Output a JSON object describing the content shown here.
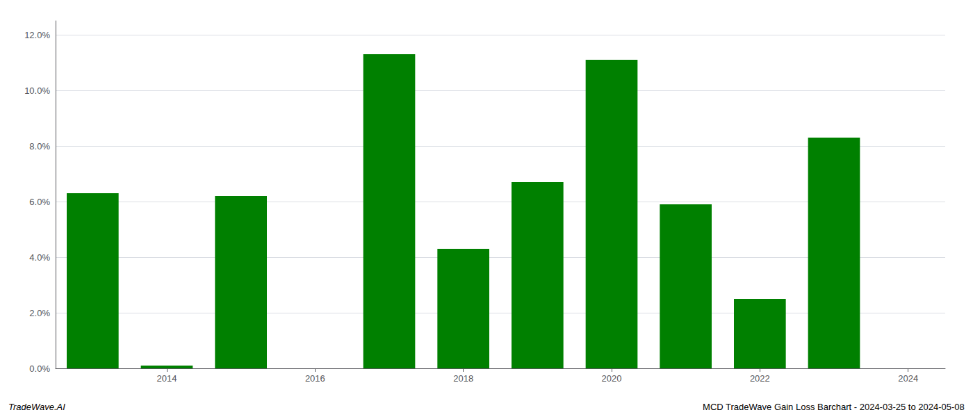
{
  "chart_data": {
    "type": "bar",
    "x": [
      2013,
      2014,
      2015,
      2017,
      2018,
      2019,
      2020,
      2021,
      2022,
      2023
    ],
    "values": [
      0.063,
      0.001,
      0.062,
      0.113,
      0.043,
      0.067,
      0.111,
      0.059,
      0.025,
      0.083
    ],
    "color": "#008000",
    "xlim": [
      2012.5,
      2024.5
    ],
    "xticks": [
      2014,
      2016,
      2018,
      2020,
      2022,
      2024
    ],
    "ylim": [
      0,
      0.125
    ],
    "yticks": [
      {
        "value": 0.0,
        "label": "0.0%"
      },
      {
        "value": 0.02,
        "label": "2.0%"
      },
      {
        "value": 0.04,
        "label": "4.0%"
      },
      {
        "value": 0.06,
        "label": "6.0%"
      },
      {
        "value": 0.08,
        "label": "8.0%"
      },
      {
        "value": 0.1,
        "label": "10.0%"
      },
      {
        "value": 0.12,
        "label": "12.0%"
      }
    ],
    "grid": true,
    "annotations": [
      "TradeWave.AI",
      "MCD TradeWave Gain Loss Barchart - 2024-03-25 to 2024-05-08"
    ]
  }
}
